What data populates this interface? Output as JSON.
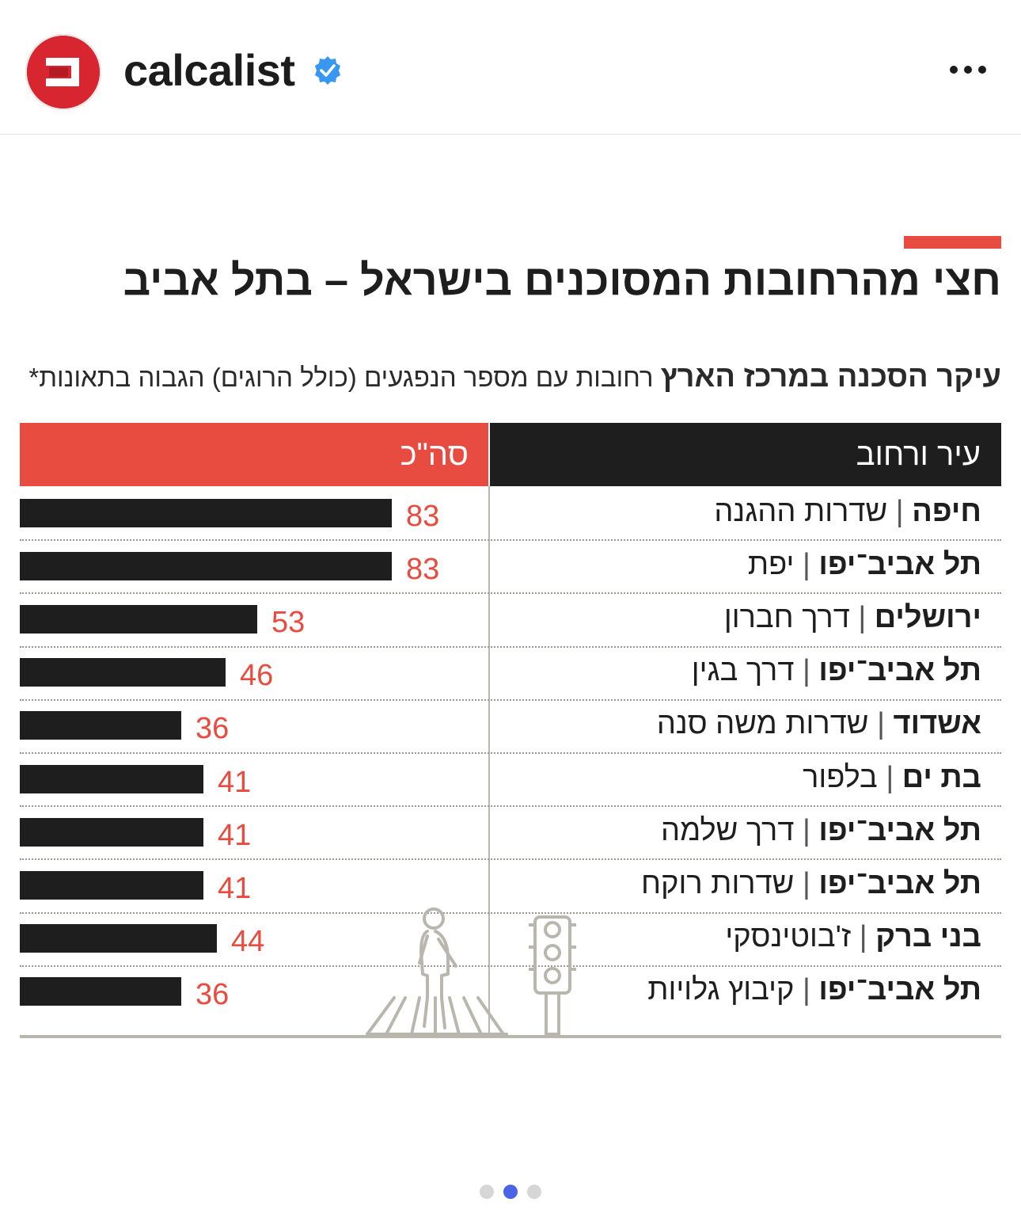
{
  "post": {
    "account_name": "calcalist",
    "verified_icon": "verified-badge-icon",
    "more_icon": "more-options-icon",
    "avatar_icon": "calcalist-logo-icon",
    "brand_color": "#d7262f"
  },
  "infographic": {
    "headline": "חצי מהרחובות המסוכנים בישראל – בתל אביב",
    "subtitle_bold": "עיקר הסכנה במרכז הארץ",
    "subtitle_rest": "רחובות עם מספר הנפגעים (כולל הרוגים) הגבוה בתאונות*",
    "accent_color": "#e84b3f",
    "illustration_icons": [
      "pedestrian-crossing-icon",
      "traffic-light-icon"
    ]
  },
  "chart_data": {
    "type": "bar",
    "orientation": "horizontal",
    "column_headers": {
      "category": "עיר ורחוב",
      "value": "סה\"כ"
    },
    "categories": [
      {
        "city": "חיפה",
        "street": "שדרות ההגנה"
      },
      {
        "city": "תל אביב־יפו",
        "street": "יפת"
      },
      {
        "city": "ירושלים",
        "street": "דרך חברון"
      },
      {
        "city": "תל אביב־יפו",
        "street": "דרך בגין"
      },
      {
        "city": "אשדוד",
        "street": "שדרות משה סנה"
      },
      {
        "city": "בת ים",
        "street": "בלפור"
      },
      {
        "city": "תל אביב־יפו",
        "street": "דרך שלמה"
      },
      {
        "city": "תל אביב־יפו",
        "street": "שדרות רוקח"
      },
      {
        "city": "בני ברק",
        "street": "ז'בוטינסקי"
      },
      {
        "city": "תל אביב־יפו",
        "street": "קיבוץ גלויות"
      }
    ],
    "values": [
      83,
      83,
      53,
      46,
      36,
      41,
      41,
      41,
      44,
      36
    ],
    "xlim": [
      0,
      100
    ],
    "bar_color": "#1e1e1e",
    "label_color": "#e84b3f",
    "title": "",
    "xlabel": "",
    "ylabel": ""
  },
  "carousel": {
    "total": 3,
    "active_index": 1
  }
}
